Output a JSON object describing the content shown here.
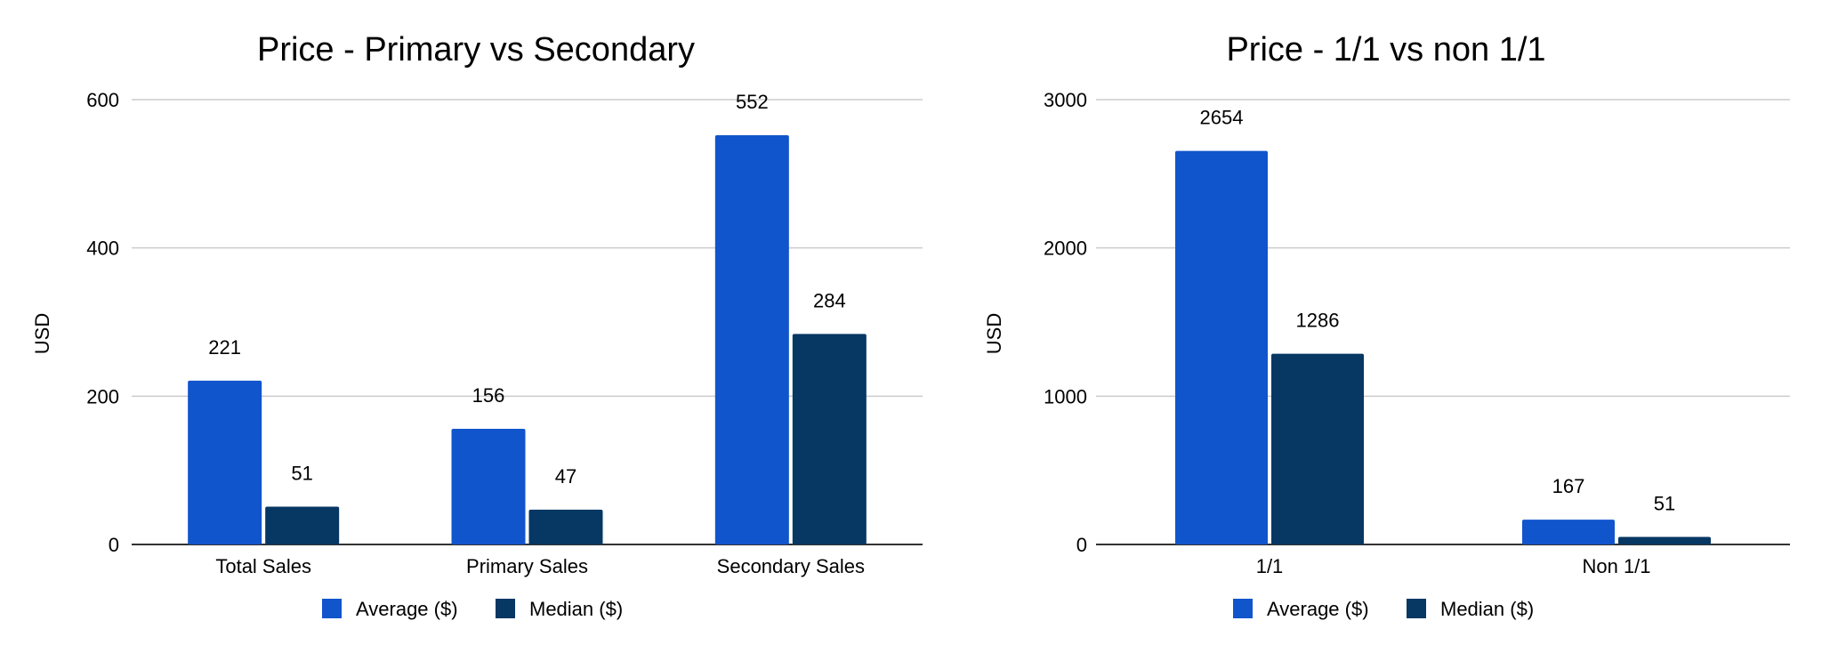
{
  "colors": {
    "average": "#1155CC",
    "median": "#073763",
    "grid": "#cccccc",
    "axis": "#333333"
  },
  "chart_data": [
    {
      "type": "bar",
      "title": "Price - Primary vs Secondary",
      "ylabel": "USD",
      "xlabel": "",
      "ylim": [
        0,
        600
      ],
      "yticks": [
        "0",
        "200",
        "400",
        "600"
      ],
      "categories": [
        "Total Sales",
        "Primary Sales",
        "Secondary Sales"
      ],
      "series": [
        {
          "name": "Average ($)",
          "values": [
            221,
            156,
            552
          ]
        },
        {
          "name": "Median ($)",
          "values": [
            51,
            47,
            284
          ]
        }
      ],
      "legend": "bottom",
      "grid": true
    },
    {
      "type": "bar",
      "title": "Price - 1/1 vs non 1/1",
      "ylabel": "USD",
      "xlabel": "",
      "ylim": [
        0,
        3000
      ],
      "yticks": [
        "0",
        "1000",
        "2000",
        "3000"
      ],
      "categories": [
        "1/1",
        "Non 1/1"
      ],
      "series": [
        {
          "name": "Average ($)",
          "values": [
            2654,
            167
          ]
        },
        {
          "name": "Median ($)",
          "values": [
            1286,
            51
          ]
        }
      ],
      "legend": "bottom",
      "grid": true
    }
  ]
}
